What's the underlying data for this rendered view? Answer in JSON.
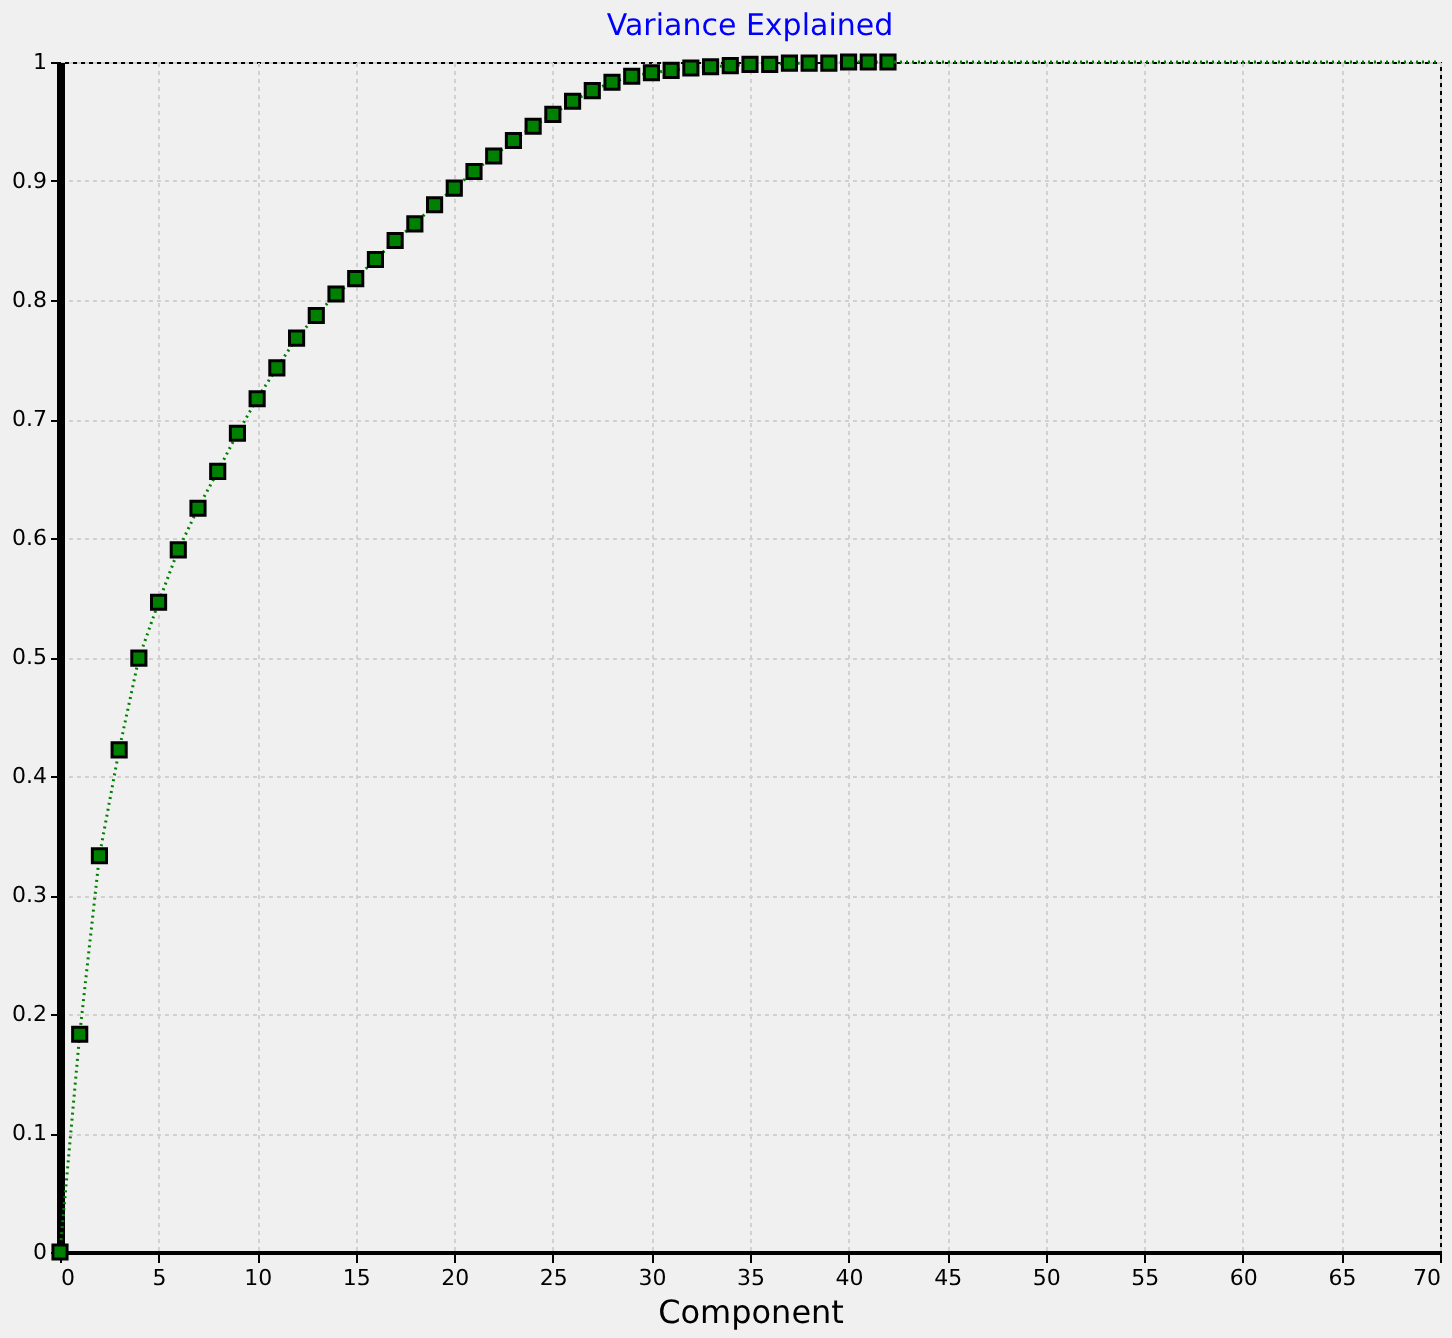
{
  "chart_data": {
    "type": "line",
    "title": "Variance Explained",
    "xlabel": "Component",
    "xlim": [
      0,
      70
    ],
    "xticks": [
      0,
      5,
      10,
      15,
      20,
      25,
      30,
      35,
      40,
      45,
      50,
      55,
      60,
      65,
      70
    ],
    "ylim": [
      0,
      1
    ],
    "yticks": [
      0,
      0.1,
      0.2,
      0.3,
      0.4,
      0.5,
      0.6,
      0.7,
      0.8,
      0.9,
      1
    ],
    "grid": true,
    "line_style": "dotted",
    "series": [
      {
        "color": "#008000",
        "marker": "square",
        "x": [
          0,
          1,
          2,
          3,
          4,
          5,
          6,
          7,
          8,
          9,
          10,
          11,
          12,
          13,
          14,
          15,
          16,
          17,
          18,
          19,
          20,
          21,
          22,
          23,
          24,
          25,
          26,
          27,
          28,
          29,
          30,
          31,
          32,
          33,
          34,
          35,
          36,
          37,
          38,
          39,
          40,
          41,
          42
        ],
        "values": [
          0,
          0.183,
          0.333,
          0.422,
          0.499,
          0.546,
          0.59,
          0.625,
          0.656,
          0.688,
          0.717,
          0.743,
          0.768,
          0.787,
          0.805,
          0.818,
          0.834,
          0.85,
          0.864,
          0.88,
          0.894,
          0.908,
          0.921,
          0.934,
          0.946,
          0.956,
          0.967,
          0.976,
          0.983,
          0.988,
          0.991,
          0.993,
          0.995,
          0.996,
          0.997,
          0.998,
          0.998,
          0.999,
          0.999,
          0.999,
          1,
          1,
          1
        ]
      },
      {
        "color": "#008000",
        "marker": "none",
        "x": [
          42,
          70
        ],
        "values": [
          1,
          1
        ]
      }
    ]
  }
}
